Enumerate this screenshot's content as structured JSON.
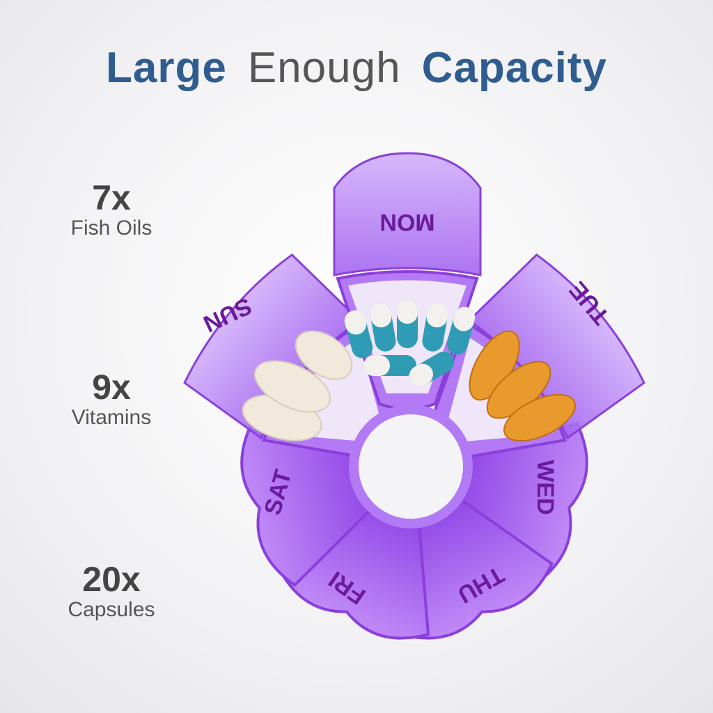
{
  "title": {
    "part1": "Large",
    "part2": "Enough",
    "part3": "Capacity"
  },
  "stats": [
    {
      "count": "7x",
      "label": "Fish Oils"
    },
    {
      "count": "9x",
      "label": "Vitamins"
    },
    {
      "count": "20x",
      "label": "Capsules"
    }
  ],
  "organizer": {
    "days": [
      "MON",
      "TUE",
      "WED",
      "THU",
      "FRI",
      "SAT",
      "SUN"
    ],
    "color": "#a25ff0"
  },
  "colors": {
    "title_accent": "#2f5d8f",
    "title_light": "#555555",
    "pill_purple": "#a25ff0",
    "capsule_teal": "#2f9bb5",
    "fish_oil": "#e89a2c",
    "vitamin": "#f1e9dc"
  }
}
